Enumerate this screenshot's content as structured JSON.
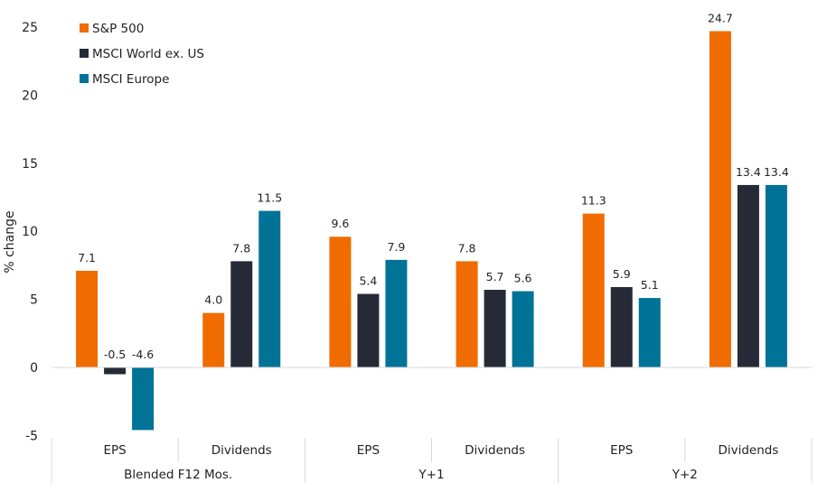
{
  "chart_data": {
    "type": "bar",
    "title": "",
    "xlabel": "",
    "ylabel": "% change",
    "ylim": [
      -5,
      25
    ],
    "yticks": [
      -5,
      0,
      5,
      10,
      15,
      20,
      25
    ],
    "grid": false,
    "legend_position": "top-left",
    "categories": [
      "EPS",
      "Dividends",
      "EPS",
      "Dividends",
      "EPS",
      "Dividends"
    ],
    "groups": [
      {
        "label": "Blended F12 Mos.",
        "categories": [
          "EPS",
          "Dividends"
        ]
      },
      {
        "label": "Y+1",
        "categories": [
          "EPS",
          "Dividends"
        ]
      },
      {
        "label": "Y+2",
        "categories": [
          "EPS",
          "Dividends"
        ]
      }
    ],
    "series": [
      {
        "name": "S&P 500",
        "color": "#F06C00",
        "values": [
          7.1,
          4.0,
          9.6,
          7.8,
          11.3,
          24.7
        ]
      },
      {
        "name": "MSCI World ex. US",
        "color": "#262A36",
        "values": [
          -0.5,
          7.8,
          5.4,
          5.7,
          5.9,
          13.4
        ]
      },
      {
        "name": "MSCI Europe",
        "color": "#007396",
        "values": [
          -4.6,
          11.5,
          7.9,
          5.6,
          5.1,
          13.4
        ]
      }
    ]
  }
}
